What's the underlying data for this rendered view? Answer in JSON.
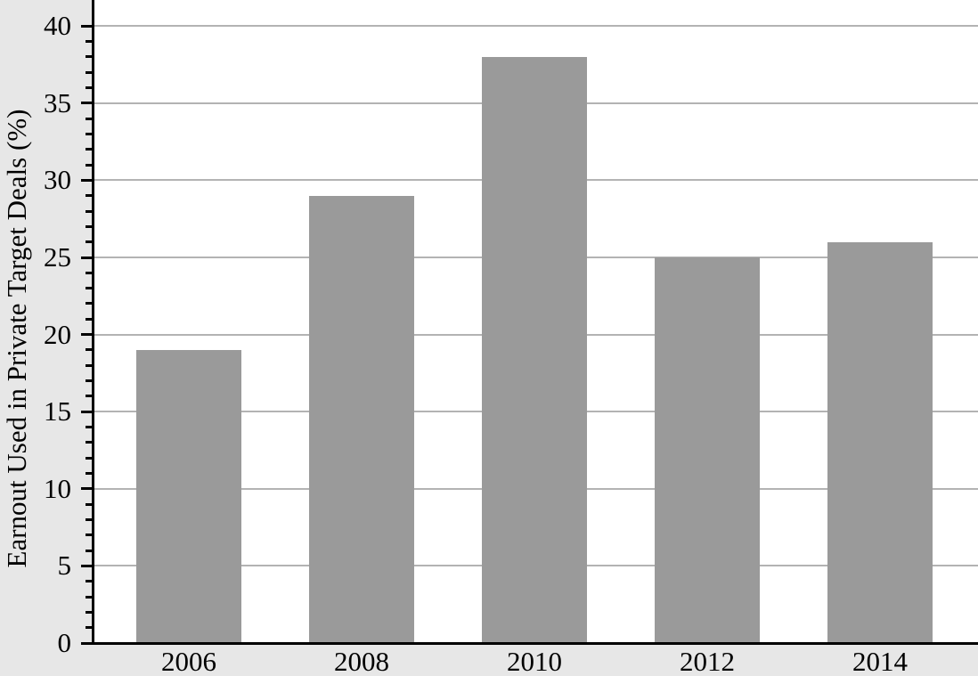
{
  "chart_data": {
    "type": "bar",
    "categories": [
      "2006",
      "2008",
      "2010",
      "2012",
      "2014"
    ],
    "values": [
      19,
      29,
      38,
      25,
      26
    ],
    "title": "",
    "xlabel": "",
    "ylabel": "Earnout Used in Private Target Deals (%)",
    "ylim": [
      0,
      41.7
    ],
    "yticks": [
      0,
      5,
      10,
      15,
      20,
      25,
      30,
      35,
      40
    ],
    "ytick_labels": [
      "0",
      "5",
      "10",
      "15",
      "20",
      "25",
      "30",
      "35",
      "40"
    ],
    "minor_tick_interval": 1,
    "grid": "horizontal-major-only",
    "legend": "none",
    "colors": {
      "bar": "#9a9a9a",
      "plot_background": "#ffffff",
      "outer_background": "#e7e7e7",
      "gridline": "#b3b3b3",
      "axis": "#000000"
    }
  }
}
